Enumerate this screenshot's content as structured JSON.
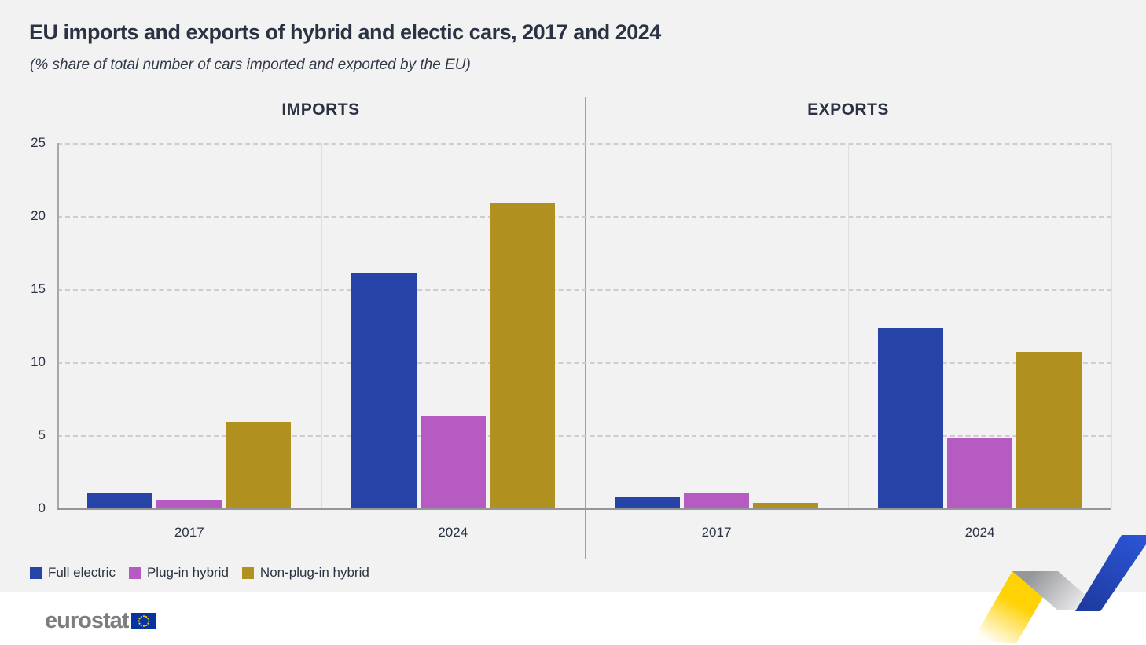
{
  "header": {
    "title": "EU imports and exports of hybrid and electic cars, 2017 and 2024",
    "subtitle": "(% share of total number of cars imported and exported by the EU)"
  },
  "chart_data": {
    "type": "bar",
    "unit": "% share",
    "ylim": [
      0,
      25
    ],
    "y_ticks": [
      25,
      20,
      15,
      10,
      5,
      0
    ],
    "grid": "dashed horizontal",
    "panels": [
      {
        "label": "IMPORTS",
        "categories": [
          "2017",
          "2024"
        ],
        "series": [
          {
            "name": "Full electric",
            "color": "#2644a7",
            "values": [
              1.0,
              16.1
            ]
          },
          {
            "name": "Plug-in hybrid",
            "color": "#b55bc2",
            "values": [
              0.6,
              6.3
            ]
          },
          {
            "name": "Non-plug-in hybrid",
            "color": "#b09120",
            "values": [
              5.9,
              20.9
            ]
          }
        ]
      },
      {
        "label": "EXPORTS",
        "categories": [
          "2017",
          "2024"
        ],
        "series": [
          {
            "name": "Full electric",
            "color": "#2644a7",
            "values": [
              0.8,
              12.3
            ]
          },
          {
            "name": "Plug-in hybrid",
            "color": "#b55bc2",
            "values": [
              1.0,
              4.8
            ]
          },
          {
            "name": "Non-plug-in hybrid",
            "color": "#b09120",
            "values": [
              0.4,
              10.7
            ]
          }
        ]
      }
    ],
    "legend_position": "bottom-left"
  },
  "legend": {
    "items": [
      {
        "label": "Full electric",
        "color": "#2644a7"
      },
      {
        "label": "Plug-in hybrid",
        "color": "#b55bc2"
      },
      {
        "label": "Non-plug-in hybrid",
        "color": "#b09120"
      }
    ]
  },
  "footer": {
    "logo_text": "eurostat"
  }
}
